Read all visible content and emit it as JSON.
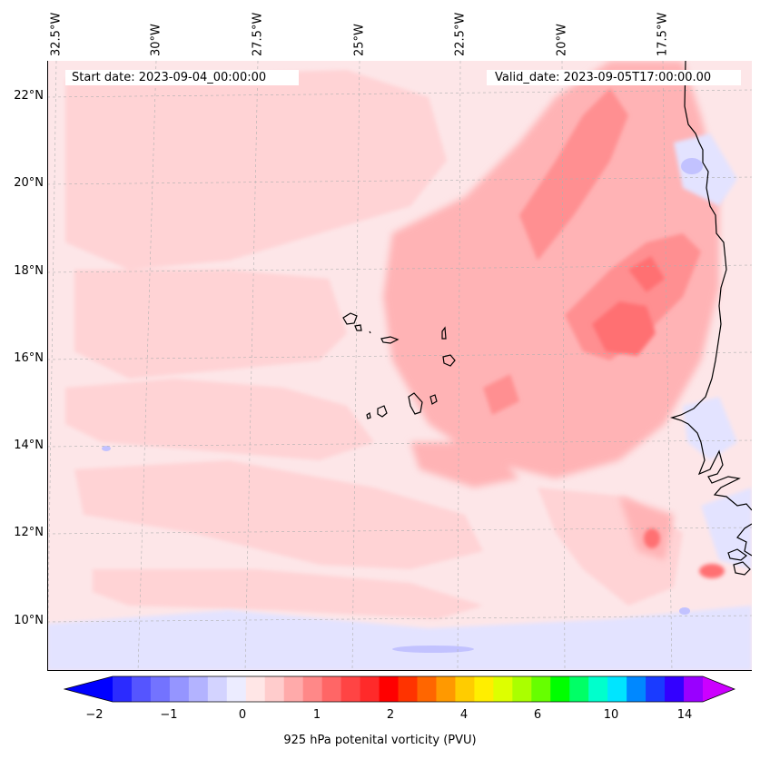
{
  "map": {
    "start_label": "Start date: 2023-09-04_00:00:00",
    "valid_label": "Valid_date: 2023-09-05T17:00:00.00",
    "lon_labels": [
      "32.5°W",
      "30°W",
      "27.5°W",
      "25°W",
      "22.5°W",
      "20°W",
      "17.5°W"
    ],
    "lat_labels": [
      "22°N",
      "20°N",
      "18°N",
      "16°N",
      "14°N",
      "12°N",
      "10°N"
    ],
    "extent": {
      "lon_min": -32.5,
      "lon_max": -15.8,
      "lat_min": 9.0,
      "lat_max": 22.8
    },
    "background_color": "#fde6e8",
    "coastline_color": "#000000"
  },
  "colorbar": {
    "title": "925 hPa potenital vorticity (PVU)",
    "tick_labels": [
      "−2",
      "−1",
      "0",
      "1",
      "2",
      "4",
      "6",
      "10",
      "14"
    ],
    "colors": [
      "#0000ff",
      "#2b2bff",
      "#5555ff",
      "#7373ff",
      "#9595ff",
      "#b3b3ff",
      "#d3d3ff",
      "#ececff",
      "#ffe6e6",
      "#ffcccc",
      "#ffaaaa",
      "#ff8888",
      "#ff6666",
      "#ff4444",
      "#ff2a2a",
      "#ff0000",
      "#ff3300",
      "#ff6600",
      "#ff9900",
      "#ffcc00",
      "#ffee00",
      "#ddff00",
      "#aaff00",
      "#66ff00",
      "#00ff00",
      "#00ff66",
      "#00ffcc",
      "#00e5ff",
      "#0088ff",
      "#1a3bff",
      "#3300ff",
      "#9900ff",
      "#cc00ff"
    ]
  }
}
